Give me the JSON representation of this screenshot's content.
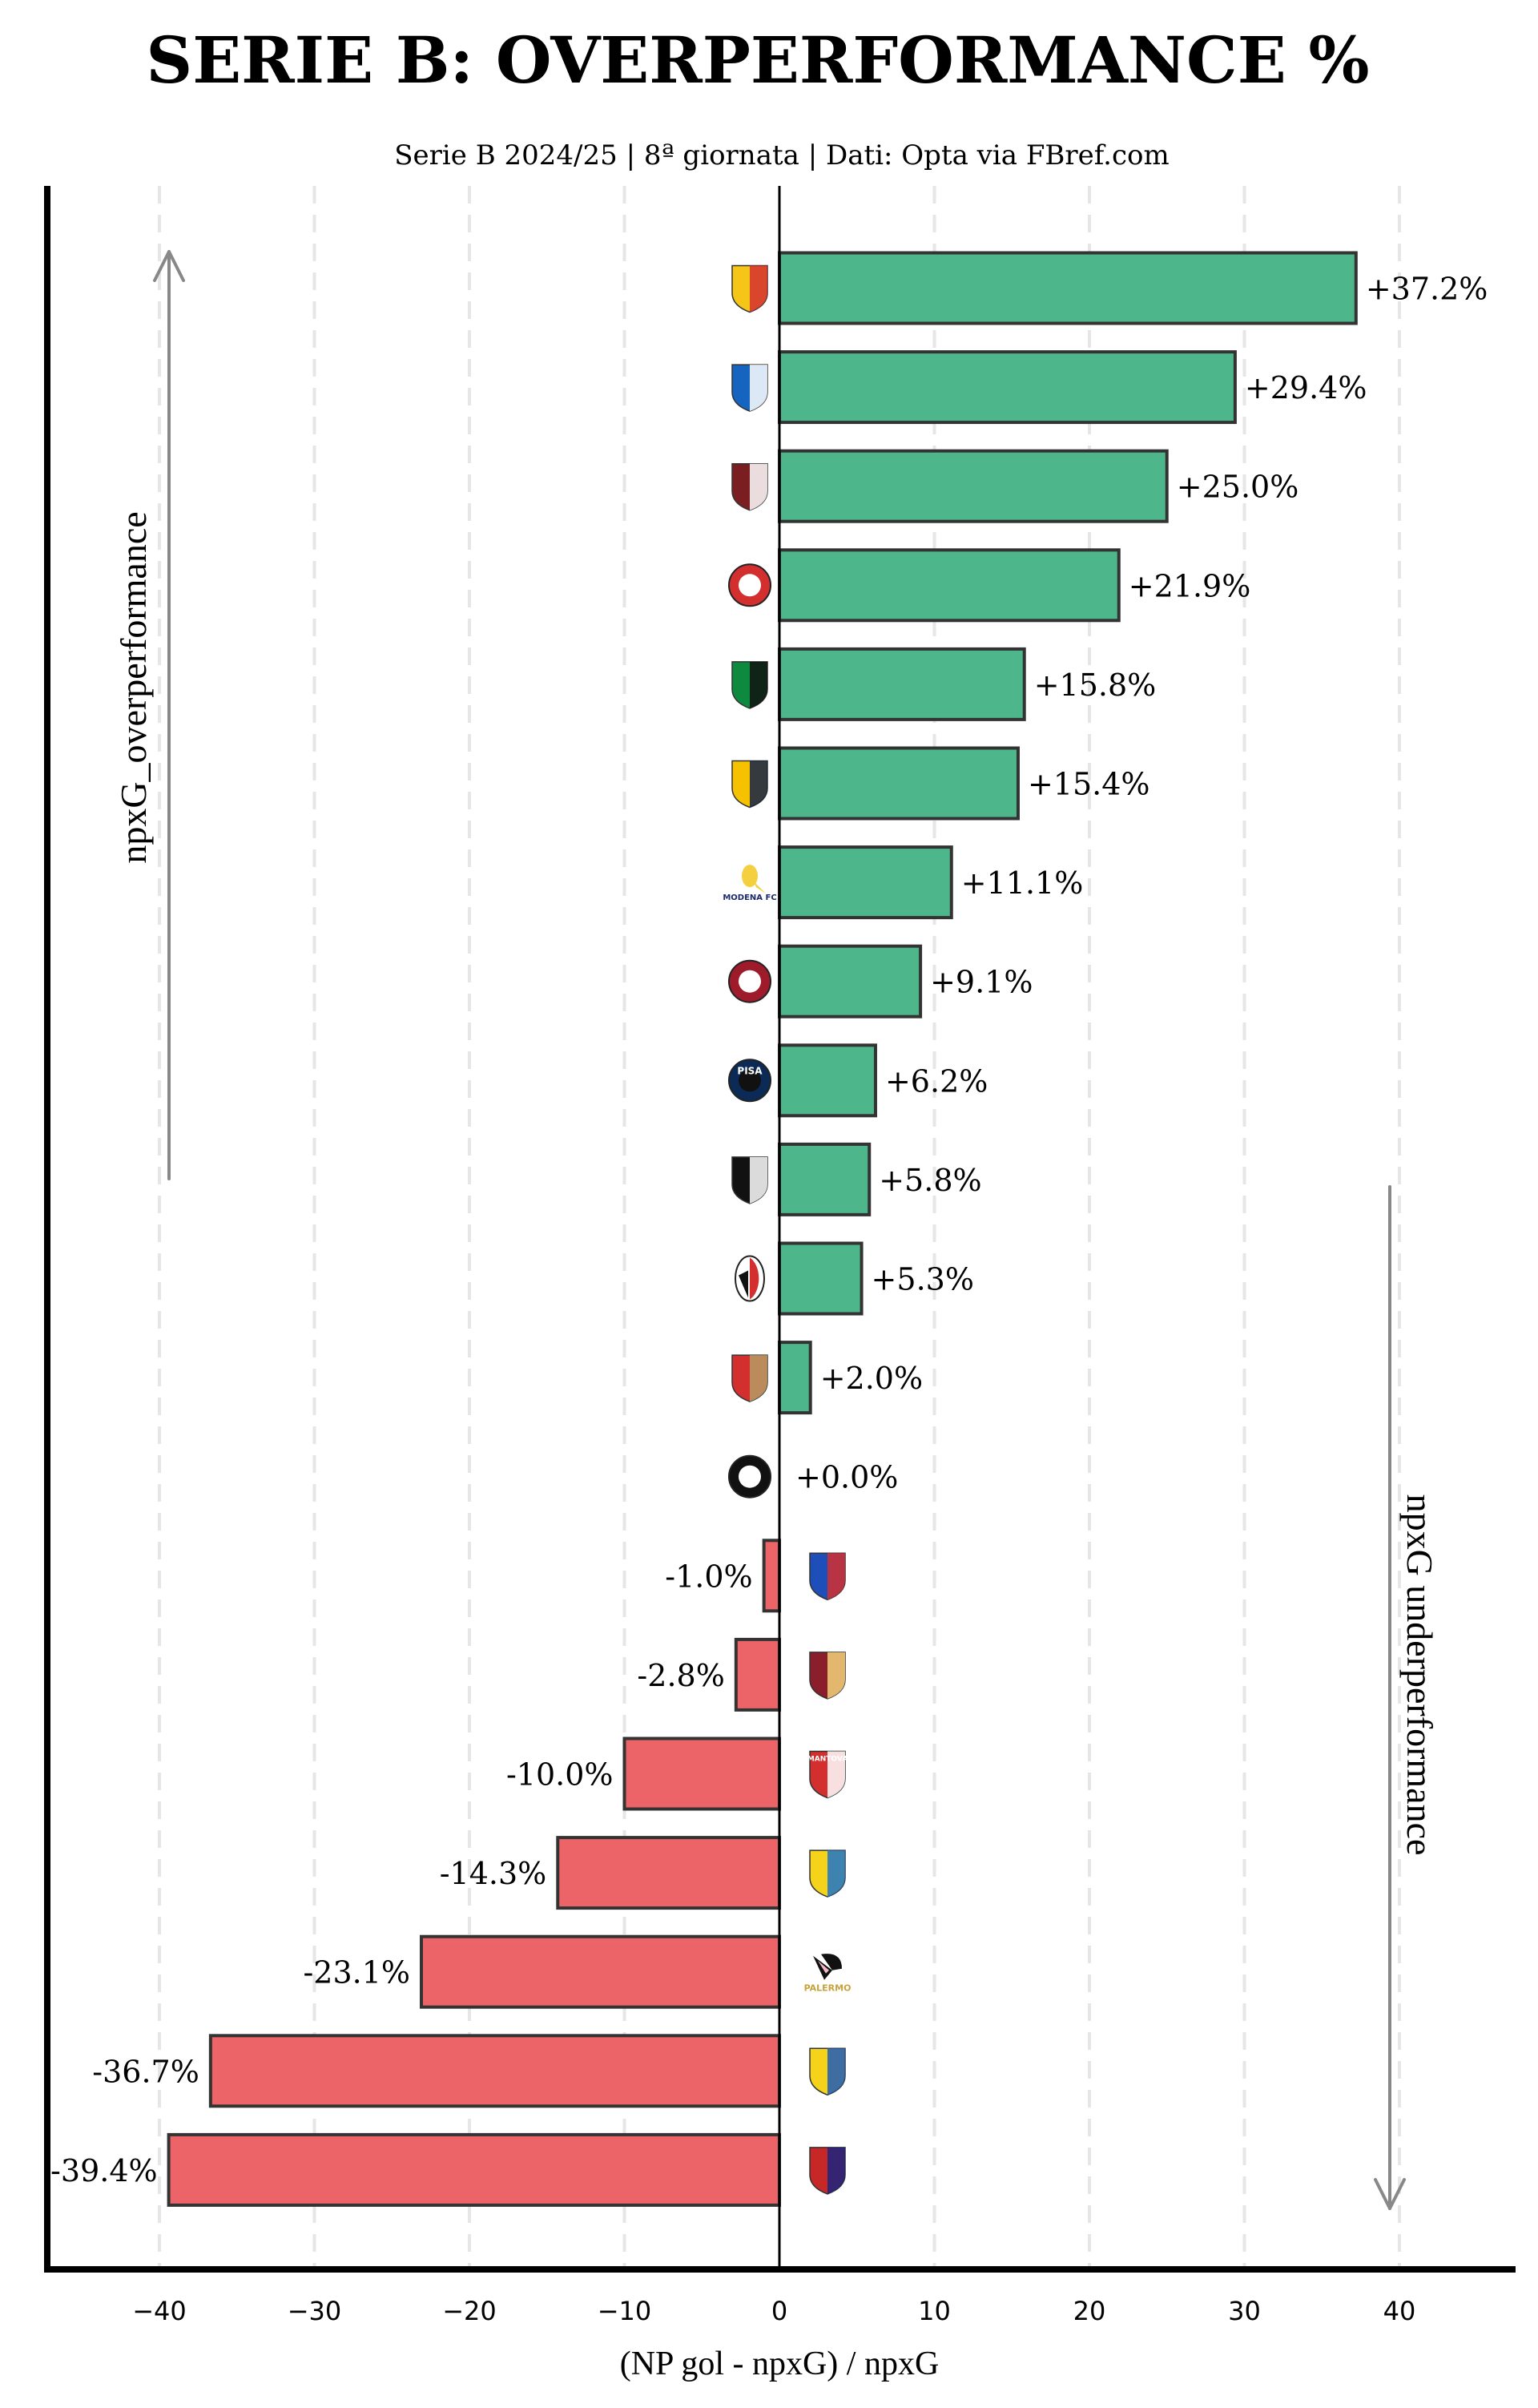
{
  "chart_data": {
    "type": "bar",
    "orientation": "horizontal",
    "title": "SERIE B: OVERPERFORMANCE %",
    "subtitle": "Serie B 2024/25 | 8ª giornata | Dati: Opta via FBref.com",
    "xlabel": "(NP gol - npxG) / npxG",
    "ylabel": "",
    "xlim": [
      -47,
      49
    ],
    "xticks": [
      -40,
      -30,
      -20,
      -10,
      0,
      10,
      20,
      30,
      40
    ],
    "xtick_labels": [
      "−40",
      "−30",
      "−20",
      "−10",
      "0",
      "10",
      "20",
      "30",
      "40"
    ],
    "grid": "vertical dashed",
    "annotations": {
      "top_left": "npxG_overperformance",
      "bottom_right": "npxG underperformance"
    },
    "colors": {
      "positive": "#4DB68A",
      "negative": "#EC6468",
      "edge": "#333333",
      "arrow": "#888888"
    },
    "categories": [
      "Catanzaro",
      "Brescia",
      "Salernitana",
      "Südtirol",
      "Sassuolo",
      "Juve Stabia",
      "Modena",
      "Cittadella",
      "Pisa",
      "Cesena",
      "Bari",
      "Cremonese",
      "Spezia",
      "Sampdoria",
      "Reggiana",
      "Mantova",
      "Carrarese",
      "Palermo",
      "Frosinone",
      "Cosenza"
    ],
    "values": [
      37.2,
      29.4,
      25.0,
      21.9,
      15.8,
      15.4,
      11.1,
      9.1,
      6.2,
      5.8,
      5.3,
      2.0,
      0.0,
      -1.0,
      -2.8,
      -10.0,
      -14.3,
      -23.1,
      -36.7,
      -39.4
    ],
    "value_labels": [
      "+37.2%",
      "+29.4%",
      "+25.0%",
      "+21.9%",
      "+15.8%",
      "+15.4%",
      "+11.1%",
      "+9.1%",
      "+6.2%",
      "+5.8%",
      "+5.3%",
      "+2.0%",
      "+0.0%",
      "-1.0%",
      "-2.8%",
      "-10.0%",
      "-14.3%",
      "-23.1%",
      "-36.7%",
      "-39.4%"
    ],
    "logos": [
      {
        "icon": "catanzaro-crest-icon",
        "colors": [
          "#F5C518",
          "#D32F2F"
        ]
      },
      {
        "icon": "brescia-crest-icon",
        "colors": [
          "#1565C0",
          "#FFFFFF"
        ]
      },
      {
        "icon": "salernitana-crest-icon",
        "colors": [
          "#7B1E22",
          "#FFFFFF"
        ]
      },
      {
        "icon": "sudtirol-crest-icon",
        "colors": [
          "#D32F2F",
          "#FFFFFF"
        ]
      },
      {
        "icon": "sassuolo-crest-icon",
        "colors": [
          "#0E8A3E",
          "#111111"
        ]
      },
      {
        "icon": "juve-stabia-crest-icon",
        "colors": [
          "#F6C200",
          "#13224A"
        ]
      },
      {
        "icon": "modena-crest-icon",
        "colors": [
          "#F4D03F",
          "#1B2A6B"
        ],
        "text": "MODENA FC"
      },
      {
        "icon": "cittadella-crest-icon",
        "colors": [
          "#9E1B2C",
          "#FFFFFF"
        ]
      },
      {
        "icon": "pisa-crest-icon",
        "colors": [
          "#0B2A55",
          "#111111"
        ],
        "text": "PISA"
      },
      {
        "icon": "cesena-crest-icon",
        "colors": [
          "#111111",
          "#FFFFFF"
        ]
      },
      {
        "icon": "bari-crest-icon",
        "colors": [
          "#D32F2F",
          "#111111"
        ]
      },
      {
        "icon": "cremonese-crest-icon",
        "colors": [
          "#D32F2F",
          "#B79B63"
        ]
      },
      {
        "icon": "spezia-crest-icon",
        "colors": [
          "#111111",
          "#FFFFFF"
        ]
      },
      {
        "icon": "sampdoria-crest-icon",
        "colors": [
          "#1E4FB8",
          "#D32F2F"
        ]
      },
      {
        "icon": "reggiana-crest-icon",
        "colors": [
          "#8B1E2B",
          "#F2D27A"
        ]
      },
      {
        "icon": "mantova-crest-icon",
        "colors": [
          "#D32F2F",
          "#FFFFFF"
        ],
        "text": "MANTOVA"
      },
      {
        "icon": "carrarese-crest-icon",
        "colors": [
          "#F6D31B",
          "#1D74C9"
        ]
      },
      {
        "icon": "palermo-crest-icon",
        "colors": [
          "#111111",
          "#F2B8C6"
        ],
        "text": "PALERMO"
      },
      {
        "icon": "frosinone-crest-icon",
        "colors": [
          "#F6D31B",
          "#1D5BB8"
        ]
      },
      {
        "icon": "cosenza-crest-icon",
        "colors": [
          "#C62828",
          "#1A237E"
        ]
      }
    ]
  }
}
